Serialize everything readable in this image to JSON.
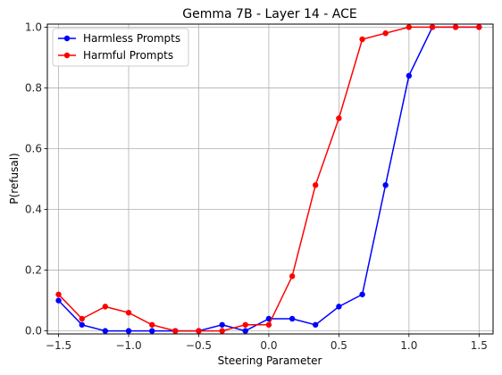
{
  "chart_data": {
    "type": "line",
    "title": "Gemma 7B - Layer 14 - ACE",
    "xlabel": "Steering Parameter",
    "ylabel": "P(refusal)",
    "xlim": [
      -1.58,
      1.6
    ],
    "ylim": [
      -0.01,
      1.01
    ],
    "xticks": [
      -1.5,
      -1.0,
      -0.5,
      0.0,
      0.5,
      1.0,
      1.5
    ],
    "xtick_labels": [
      "−1.5",
      "−1.0",
      "−0.5",
      "0.0",
      "0.5",
      "1.0",
      "1.5"
    ],
    "yticks": [
      0.0,
      0.2,
      0.4,
      0.6,
      0.8,
      1.0
    ],
    "ytick_labels": [
      "0.0",
      "0.2",
      "0.4",
      "0.6",
      "0.8",
      "1.0"
    ],
    "grid": true,
    "legend_position": "top-left",
    "x": [
      -1.5,
      -1.333,
      -1.167,
      -1.0,
      -0.833,
      -0.667,
      -0.5,
      -0.333,
      -0.167,
      0.0,
      0.167,
      0.333,
      0.5,
      0.667,
      0.833,
      1.0,
      1.167,
      1.333,
      1.5
    ],
    "series": [
      {
        "name": "Harmless Prompts",
        "color": "#0000ff",
        "values": [
          0.1,
          0.02,
          0.0,
          0.0,
          0.0,
          0.0,
          0.0,
          0.02,
          0.0,
          0.04,
          0.04,
          0.02,
          0.08,
          0.12,
          0.48,
          0.84,
          1.0,
          1.0,
          1.0
        ]
      },
      {
        "name": "Harmful Prompts",
        "color": "#ff0000",
        "values": [
          0.12,
          0.04,
          0.08,
          0.06,
          0.02,
          0.0,
          0.0,
          0.0,
          0.02,
          0.02,
          0.18,
          0.48,
          0.7,
          0.96,
          0.98,
          1.0,
          1.0,
          1.0,
          1.0
        ]
      }
    ]
  }
}
